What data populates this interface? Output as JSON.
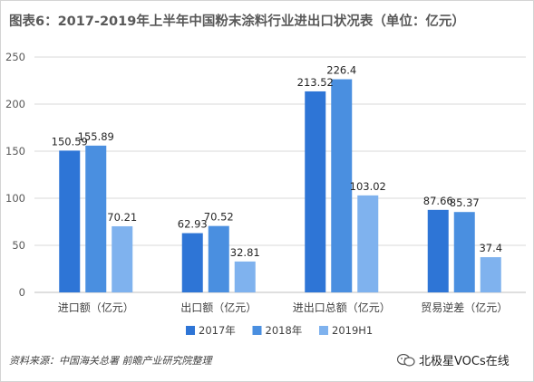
{
  "title": "图表6：2017-2019年上半年中国粉末涂料行业进出口状况表（单位：亿元）",
  "source": "资料来源：中国海关总署 前瞻产业研究院整理",
  "brand": "北极星VOCs在线",
  "colors": {
    "series": [
      "#2e75d6",
      "#4a8fe0",
      "#7fb2ee"
    ],
    "grid": "#d9d9d9",
    "axis": "#bfbfbf"
  },
  "chart_data": {
    "type": "bar",
    "title": "图表6：2017-2019年上半年中国粉末涂料行业进出口状况表（单位：亿元）",
    "categories": [
      "进口额（亿元）",
      "出口额（亿元）",
      "进出口总额（亿元）",
      "贸易逆差（亿元）"
    ],
    "series": [
      {
        "name": "2017年",
        "values": [
          150.59,
          62.93,
          213.52,
          87.66
        ],
        "labels": [
          "150.59",
          "62.93",
          "213.52",
          "87.66"
        ]
      },
      {
        "name": "2018年",
        "values": [
          155.89,
          70.52,
          226.4,
          85.37
        ],
        "labels": [
          "155.89",
          "70.52",
          "226.4",
          "85.37"
        ]
      },
      {
        "name": "2019H1",
        "values": [
          70.21,
          32.81,
          103.02,
          37.4
        ],
        "labels": [
          "70.21",
          "32.81",
          "103.02",
          "37.4"
        ]
      }
    ],
    "ylim": [
      0,
      250
    ],
    "yticks": [
      0,
      50,
      100,
      150,
      200,
      250
    ],
    "grid": true,
    "legend": "bottom"
  }
}
